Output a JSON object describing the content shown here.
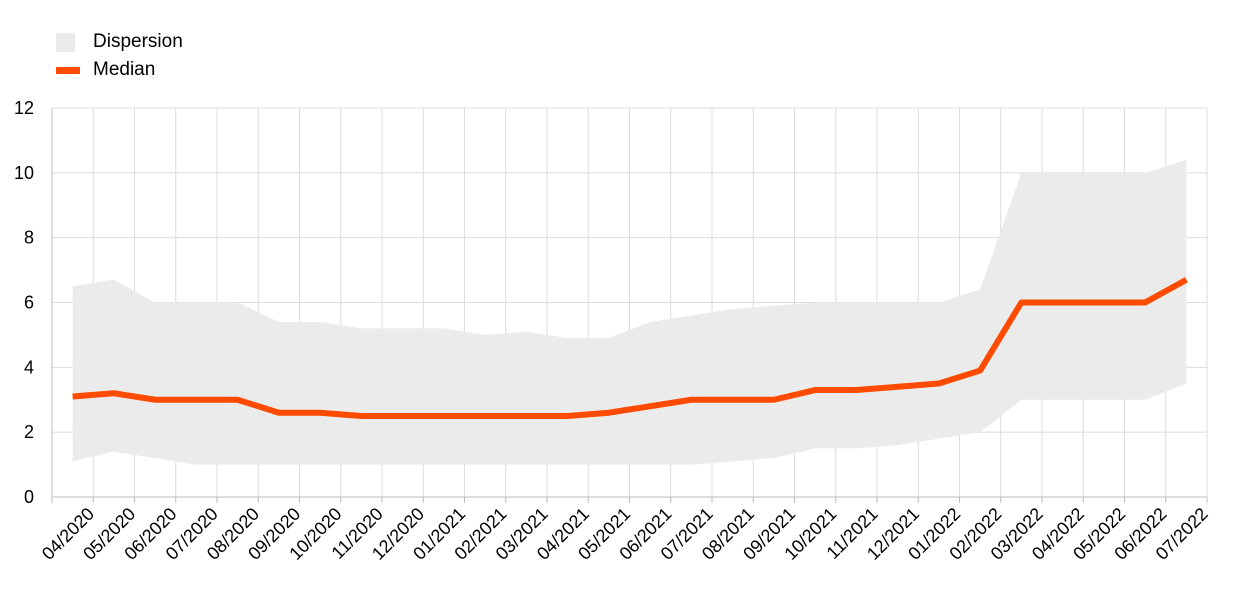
{
  "legend": {
    "dispersion_label": "Dispersion",
    "median_label": "Median"
  },
  "colors": {
    "dispersion": "#ebebeb",
    "median": "#ff4b00",
    "grid": "#dcdcdc",
    "axis": "#bdbdbd"
  },
  "chart_data": {
    "type": "area",
    "categories": [
      "04/2020",
      "05/2020",
      "06/2020",
      "07/2020",
      "08/2020",
      "09/2020",
      "10/2020",
      "11/2020",
      "12/2020",
      "01/2021",
      "02/2021",
      "03/2021",
      "04/2021",
      "05/2021",
      "06/2021",
      "07/2021",
      "08/2021",
      "09/2021",
      "10/2021",
      "11/2021",
      "12/2021",
      "01/2022",
      "02/2022",
      "03/2022",
      "04/2022",
      "05/2022",
      "06/2022",
      "07/2022"
    ],
    "series": [
      {
        "name": "Dispersion",
        "kind": "band",
        "low": [
          1.1,
          1.4,
          1.2,
          1.0,
          1.0,
          1.0,
          1.0,
          1.0,
          1.0,
          1.0,
          1.0,
          1.0,
          1.0,
          1.0,
          1.0,
          1.0,
          1.1,
          1.2,
          1.5,
          1.5,
          1.6,
          1.8,
          2.0,
          3.0,
          3.0,
          3.0,
          3.0,
          3.5
        ],
        "high": [
          6.5,
          6.7,
          6.0,
          6.0,
          6.0,
          5.4,
          5.4,
          5.2,
          5.2,
          5.2,
          5.0,
          5.1,
          4.9,
          4.9,
          5.4,
          5.6,
          5.8,
          5.9,
          6.0,
          6.0,
          6.0,
          6.0,
          6.4,
          10.0,
          10.0,
          10.0,
          10.0,
          10.4
        ]
      },
      {
        "name": "Median",
        "kind": "line",
        "values": [
          3.1,
          3.2,
          3.0,
          3.0,
          3.0,
          2.6,
          2.6,
          2.5,
          2.5,
          2.5,
          2.5,
          2.5,
          2.5,
          2.6,
          2.8,
          3.0,
          3.0,
          3.0,
          3.3,
          3.3,
          3.4,
          3.5,
          3.9,
          6.0,
          6.0,
          6.0,
          6.0,
          6.7
        ]
      }
    ],
    "ylim": [
      0,
      12
    ],
    "yticks": [
      "0",
      "2",
      "4",
      "6",
      "8",
      "10",
      "12"
    ],
    "grid": true,
    "legend_position": "top-left"
  }
}
